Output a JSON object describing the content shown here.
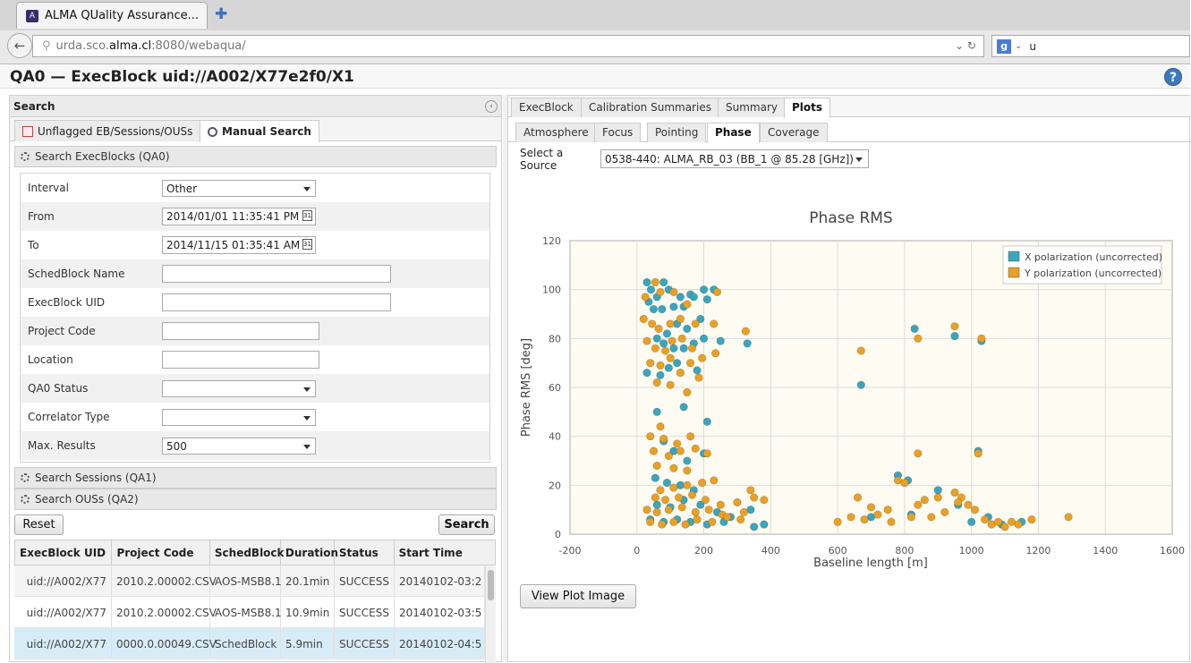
{
  "browser": {
    "tab_title": "ALMA QUality Assurance...",
    "url_host_prefix": "urda.sco.",
    "url_host_main": "alma.cl",
    "url_rest": ":8080/webaqua/",
    "search_text": "u"
  },
  "app": {
    "title": "QA0 — ExecBlock uid://A002/X77e2f0/X1"
  },
  "left": {
    "panel_title": "Search",
    "tabs": [
      "Unflagged EB/Sessions/OUSs",
      "Manual Search"
    ],
    "section_qa0": "Search ExecBlocks (QA0)",
    "section_qa1": "Search Sessions (QA1)",
    "section_qa2": "Search OUSs (QA2)",
    "fields": {
      "interval_label": "Interval",
      "interval_value": "Other",
      "from_label": "From",
      "from_value": "2014/01/01 11:35:41 PM",
      "to_label": "To",
      "to_value": "2014/11/15 01:35:41 AM",
      "schedblock_label": "SchedBlock Name",
      "execblock_label": "ExecBlock UID",
      "project_label": "Project Code",
      "location_label": "Location",
      "qa0_label": "QA0 Status",
      "correlator_label": "Correlator Type",
      "maxresults_label": "Max. Results",
      "maxresults_value": "500"
    },
    "reset_label": "Reset",
    "search_label": "Search",
    "table": {
      "headers": [
        "ExecBlock UID",
        "Project Code",
        "SchedBlock",
        "Duration",
        "Status",
        "Start Time"
      ],
      "rows": [
        [
          "uid://A002/X77",
          "2010.2.00002.CSV",
          "AOS-MSB8.1",
          "20.1min",
          "SUCCESS",
          "20140102-03:2"
        ],
        [
          "uid://A002/X77",
          "2010.2.00002.CSV",
          "AOS-MSB8.1",
          "10.9min",
          "SUCCESS",
          "20140102-03:5"
        ],
        [
          "uid://A002/X77",
          "0000.0.00049.CSV",
          "SchedBlock",
          "5.9min",
          "SUCCESS",
          "20140102-04:5"
        ]
      ]
    }
  },
  "right": {
    "tabs": [
      "ExecBlock",
      "Calibration Summaries",
      "Summary",
      "Plots"
    ],
    "subtabs": [
      "Atmosphere",
      "Focus",
      "Pointing",
      "Phase",
      "Coverage"
    ],
    "source_label": "Select a Source",
    "source_value": "0538-440: ALMA_RB_03 (BB_1 @ 85.28 [GHz])",
    "view_plot_label": "View Plot Image"
  },
  "chart_data": {
    "type": "scatter",
    "title": "Phase RMS",
    "xlabel": "Baseline length [m]",
    "ylabel": "Phase RMS [deg]",
    "xlim": [
      -200,
      1600
    ],
    "ylim": [
      0,
      120
    ],
    "xticks": [
      -200,
      0,
      200,
      400,
      600,
      800,
      1000,
      1200,
      1400,
      1600
    ],
    "yticks": [
      0,
      20,
      40,
      60,
      80,
      100,
      120
    ],
    "grid": true,
    "legend_position": "top-right",
    "series": [
      {
        "name": "X polarization (uncorrected)",
        "color": "#3aa6bd",
        "points": [
          [
            30,
            103
          ],
          [
            42,
            100
          ],
          [
            60,
            97
          ],
          [
            80,
            103
          ],
          [
            95,
            100
          ],
          [
            130,
            97
          ],
          [
            160,
            98
          ],
          [
            200,
            100
          ],
          [
            230,
            100
          ],
          [
            210,
            96
          ],
          [
            35,
            95
          ],
          [
            50,
            92
          ],
          [
            75,
            92
          ],
          [
            110,
            93
          ],
          [
            140,
            93
          ],
          [
            170,
            97
          ],
          [
            190,
            88
          ],
          [
            150,
            84
          ],
          [
            120,
            86
          ],
          [
            90,
            82
          ],
          [
            60,
            80
          ],
          [
            80,
            78
          ],
          [
            110,
            76
          ],
          [
            140,
            76
          ],
          [
            170,
            78
          ],
          [
            200,
            80
          ],
          [
            250,
            79
          ],
          [
            330,
            78
          ],
          [
            30,
            66
          ],
          [
            70,
            65
          ],
          [
            95,
            68
          ],
          [
            120,
            70
          ],
          [
            180,
            67
          ],
          [
            60,
            50
          ],
          [
            140,
            52
          ],
          [
            210,
            46
          ],
          [
            80,
            38
          ],
          [
            110,
            34
          ],
          [
            150,
            30
          ],
          [
            200,
            33
          ],
          [
            55,
            23
          ],
          [
            90,
            21
          ],
          [
            130,
            20
          ],
          [
            170,
            18
          ],
          [
            60,
            12
          ],
          [
            100,
            11
          ],
          [
            140,
            14
          ],
          [
            190,
            12
          ],
          [
            240,
            9
          ],
          [
            280,
            7
          ],
          [
            40,
            6
          ],
          [
            80,
            5
          ],
          [
            120,
            6
          ],
          [
            160,
            5
          ],
          [
            210,
            4
          ],
          [
            260,
            5
          ],
          [
            350,
            3
          ],
          [
            380,
            4
          ],
          [
            340,
            10
          ],
          [
            670,
            61
          ],
          [
            780,
            24
          ],
          [
            810,
            22
          ],
          [
            830,
            84
          ],
          [
            950,
            81
          ],
          [
            1030,
            79
          ],
          [
            1020,
            34
          ],
          [
            900,
            18
          ],
          [
            960,
            12
          ],
          [
            1050,
            7
          ],
          [
            1000,
            5
          ],
          [
            820,
            8
          ],
          [
            700,
            7
          ],
          [
            1090,
            4
          ],
          [
            1150,
            5
          ]
        ]
      },
      {
        "name": "Y polarization (uncorrected)",
        "color": "#e9a024",
        "points": [
          [
            25,
            97
          ],
          [
            55,
            103
          ],
          [
            70,
            99
          ],
          [
            110,
            99
          ],
          [
            150,
            94
          ],
          [
            240,
            99
          ],
          [
            20,
            88
          ],
          [
            45,
            86
          ],
          [
            65,
            84
          ],
          [
            100,
            86
          ],
          [
            130,
            88
          ],
          [
            175,
            86
          ],
          [
            230,
            86
          ],
          [
            325,
            83
          ],
          [
            30,
            79
          ],
          [
            55,
            76
          ],
          [
            85,
            75
          ],
          [
            105,
            79
          ],
          [
            135,
            80
          ],
          [
            165,
            76
          ],
          [
            195,
            72
          ],
          [
            235,
            74
          ],
          [
            40,
            70
          ],
          [
            70,
            69
          ],
          [
            100,
            72
          ],
          [
            130,
            66
          ],
          [
            160,
            70
          ],
          [
            185,
            64
          ],
          [
            60,
            62
          ],
          [
            100,
            61
          ],
          [
            150,
            58
          ],
          [
            70,
            44
          ],
          [
            40,
            40
          ],
          [
            80,
            39
          ],
          [
            120,
            37
          ],
          [
            160,
            40
          ],
          [
            50,
            34
          ],
          [
            95,
            32
          ],
          [
            130,
            34
          ],
          [
            175,
            35
          ],
          [
            210,
            33
          ],
          [
            60,
            28
          ],
          [
            110,
            27
          ],
          [
            150,
            26
          ],
          [
            70,
            18
          ],
          [
            110,
            19
          ],
          [
            150,
            20
          ],
          [
            195,
            21
          ],
          [
            230,
            22
          ],
          [
            55,
            15
          ],
          [
            85,
            14
          ],
          [
            125,
            15
          ],
          [
            165,
            16
          ],
          [
            205,
            14
          ],
          [
            250,
            12
          ],
          [
            300,
            13
          ],
          [
            30,
            10
          ],
          [
            60,
            9
          ],
          [
            95,
            10
          ],
          [
            135,
            11
          ],
          [
            175,
            9
          ],
          [
            215,
            10
          ],
          [
            255,
            8
          ],
          [
            320,
            9
          ],
          [
            40,
            5
          ],
          [
            75,
            4
          ],
          [
            110,
            5
          ],
          [
            145,
            4
          ],
          [
            180,
            6
          ],
          [
            225,
            5
          ],
          [
            270,
            7
          ],
          [
            310,
            6
          ],
          [
            350,
            15
          ],
          [
            380,
            14
          ],
          [
            340,
            18
          ],
          [
            600,
            5
          ],
          [
            660,
            15
          ],
          [
            700,
            11
          ],
          [
            720,
            8
          ],
          [
            750,
            10
          ],
          [
            780,
            22
          ],
          [
            800,
            21
          ],
          [
            820,
            7
          ],
          [
            840,
            12
          ],
          [
            860,
            14
          ],
          [
            880,
            7
          ],
          [
            920,
            9
          ],
          [
            950,
            17
          ],
          [
            970,
            15
          ],
          [
            990,
            12
          ],
          [
            1010,
            10
          ],
          [
            1040,
            6
          ],
          [
            1060,
            4
          ],
          [
            1100,
            3
          ],
          [
            1140,
            4
          ],
          [
            1180,
            6
          ],
          [
            1290,
            7
          ],
          [
            670,
            75
          ],
          [
            840,
            80
          ],
          [
            950,
            85
          ],
          [
            1030,
            80
          ],
          [
            1020,
            33
          ],
          [
            840,
            33
          ],
          [
            640,
            7
          ],
          [
            760,
            5
          ],
          [
            900,
            15
          ],
          [
            960,
            13
          ],
          [
            1080,
            5
          ],
          [
            1120,
            5
          ],
          [
            680,
            6
          ]
        ]
      }
    ]
  }
}
